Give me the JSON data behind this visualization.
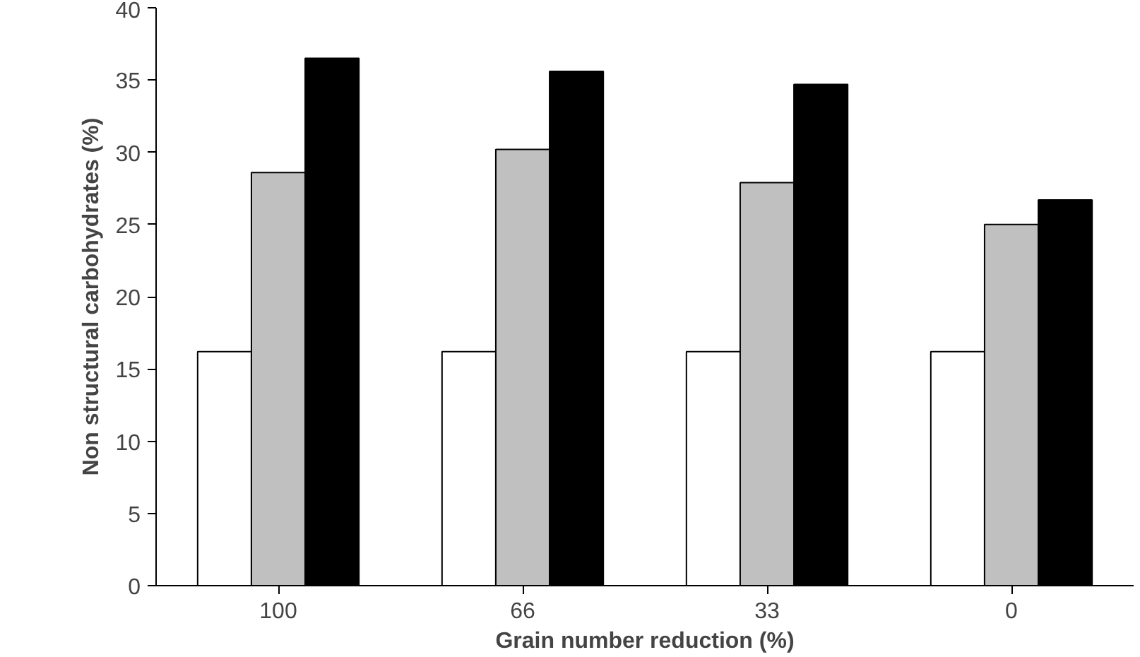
{
  "chart_data": {
    "type": "bar",
    "xlabel": "Grain number reduction (%)",
    "ylabel": "Non structural carbohydrates (%)",
    "categories": [
      "100",
      "66",
      "33",
      "0"
    ],
    "series": [
      {
        "color": "#ffffff",
        "values": [
          16.2,
          16.2,
          16.2,
          16.2
        ]
      },
      {
        "color": "#c0c0c0",
        "values": [
          28.6,
          30.2,
          27.9,
          25.0
        ]
      },
      {
        "color": "#000000",
        "values": [
          36.5,
          35.6,
          34.7,
          26.7
        ]
      }
    ],
    "ylim": [
      0,
      40
    ],
    "yticks": [
      0,
      5,
      10,
      15,
      20,
      25,
      30,
      35,
      40
    ],
    "grid": false
  }
}
